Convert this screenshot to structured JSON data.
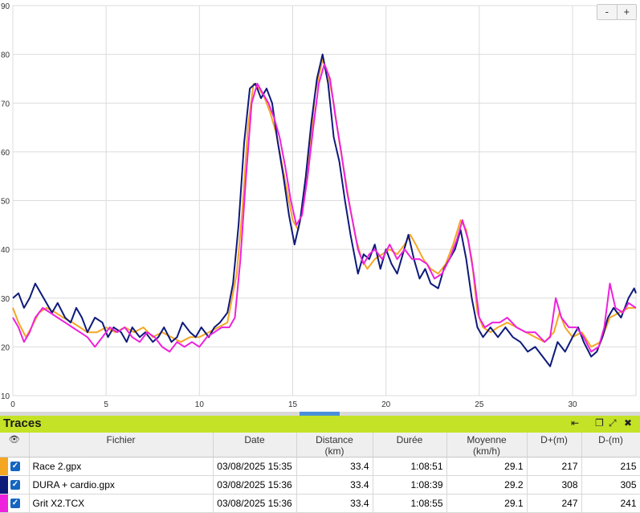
{
  "chart_data": {
    "type": "line",
    "xlim": [
      0,
      33.4
    ],
    "ylim": [
      10,
      90
    ],
    "x_ticks": [
      0,
      5,
      10,
      15,
      20,
      25,
      30
    ],
    "y_ticks": [
      10,
      20,
      30,
      40,
      50,
      60,
      70,
      80,
      90
    ],
    "grid": true,
    "series": [
      {
        "name": "Race 2.gpx",
        "color": "#f5a623",
        "points": [
          [
            0,
            28
          ],
          [
            0.3,
            25
          ],
          [
            0.7,
            22
          ],
          [
            1,
            24
          ],
          [
            1.4,
            27
          ],
          [
            1.8,
            28
          ],
          [
            2.3,
            27
          ],
          [
            2.7,
            26
          ],
          [
            3.2,
            25
          ],
          [
            3.6,
            24
          ],
          [
            4,
            23
          ],
          [
            4.5,
            23
          ],
          [
            5,
            24
          ],
          [
            5.5,
            23
          ],
          [
            6,
            24
          ],
          [
            6.5,
            23
          ],
          [
            7,
            24
          ],
          [
            7.5,
            22
          ],
          [
            8,
            23
          ],
          [
            8.5,
            22
          ],
          [
            9,
            21
          ],
          [
            9.5,
            22
          ],
          [
            10,
            22
          ],
          [
            10.5,
            23
          ],
          [
            11,
            24
          ],
          [
            11.5,
            25
          ],
          [
            12,
            35
          ],
          [
            12.3,
            48
          ],
          [
            12.6,
            65
          ],
          [
            12.9,
            74
          ],
          [
            13.2,
            73
          ],
          [
            13.5,
            71
          ],
          [
            13.8,
            68
          ],
          [
            14.1,
            64
          ],
          [
            14.4,
            58
          ],
          [
            14.7,
            52
          ],
          [
            15,
            46
          ],
          [
            15.3,
            44
          ],
          [
            15.6,
            50
          ],
          [
            15.9,
            60
          ],
          [
            16.2,
            72
          ],
          [
            16.6,
            79
          ],
          [
            16.9,
            76
          ],
          [
            17.2,
            70
          ],
          [
            17.5,
            62
          ],
          [
            17.8,
            55
          ],
          [
            18.1,
            48
          ],
          [
            18.4,
            42
          ],
          [
            18.7,
            38
          ],
          [
            19,
            36
          ],
          [
            19.4,
            38
          ],
          [
            19.8,
            39
          ],
          [
            20.2,
            40
          ],
          [
            20.6,
            39
          ],
          [
            21,
            41
          ],
          [
            21.3,
            43
          ],
          [
            21.6,
            41
          ],
          [
            22,
            38
          ],
          [
            22.4,
            36
          ],
          [
            22.8,
            35
          ],
          [
            23.2,
            37
          ],
          [
            23.6,
            41
          ],
          [
            24,
            46
          ],
          [
            24.3,
            44
          ],
          [
            24.6,
            38
          ],
          [
            24.9,
            27
          ],
          [
            25.2,
            24
          ],
          [
            25.6,
            23
          ],
          [
            26,
            24
          ],
          [
            26.5,
            25
          ],
          [
            27,
            24
          ],
          [
            27.5,
            23
          ],
          [
            28,
            22
          ],
          [
            28.5,
            21
          ],
          [
            29,
            23
          ],
          [
            29.3,
            27
          ],
          [
            29.6,
            24
          ],
          [
            30,
            22
          ],
          [
            30.5,
            23
          ],
          [
            31,
            20
          ],
          [
            31.5,
            21
          ],
          [
            32,
            26
          ],
          [
            32.5,
            27
          ],
          [
            33,
            28
          ],
          [
            33.4,
            28
          ]
        ]
      },
      {
        "name": "DURA + cardio.gpx",
        "color": "#0d1a7a",
        "points": [
          [
            0,
            30
          ],
          [
            0.3,
            31
          ],
          [
            0.6,
            28
          ],
          [
            0.9,
            30
          ],
          [
            1.2,
            33
          ],
          [
            1.5,
            31
          ],
          [
            1.8,
            29
          ],
          [
            2.1,
            27
          ],
          [
            2.4,
            29
          ],
          [
            2.8,
            26
          ],
          [
            3.1,
            25
          ],
          [
            3.4,
            28
          ],
          [
            3.7,
            26
          ],
          [
            4,
            23
          ],
          [
            4.4,
            26
          ],
          [
            4.8,
            25
          ],
          [
            5.1,
            22
          ],
          [
            5.4,
            24
          ],
          [
            5.8,
            23
          ],
          [
            6.1,
            21
          ],
          [
            6.4,
            24
          ],
          [
            6.8,
            22
          ],
          [
            7.1,
            23
          ],
          [
            7.5,
            21
          ],
          [
            7.8,
            22
          ],
          [
            8.1,
            24
          ],
          [
            8.5,
            21
          ],
          [
            8.8,
            22
          ],
          [
            9.1,
            25
          ],
          [
            9.5,
            23
          ],
          [
            9.8,
            22
          ],
          [
            10.1,
            24
          ],
          [
            10.5,
            22
          ],
          [
            10.8,
            24
          ],
          [
            11.1,
            25
          ],
          [
            11.5,
            27
          ],
          [
            11.8,
            33
          ],
          [
            12.1,
            45
          ],
          [
            12.4,
            62
          ],
          [
            12.7,
            73
          ],
          [
            13,
            74
          ],
          [
            13.3,
            71
          ],
          [
            13.6,
            73
          ],
          [
            13.9,
            70
          ],
          [
            14.2,
            62
          ],
          [
            14.5,
            55
          ],
          [
            14.8,
            47
          ],
          [
            15.1,
            41
          ],
          [
            15.4,
            46
          ],
          [
            15.7,
            55
          ],
          [
            16,
            66
          ],
          [
            16.3,
            75
          ],
          [
            16.6,
            80
          ],
          [
            16.9,
            74
          ],
          [
            17.2,
            63
          ],
          [
            17.5,
            58
          ],
          [
            17.8,
            50
          ],
          [
            18.1,
            43
          ],
          [
            18.5,
            35
          ],
          [
            18.8,
            39
          ],
          [
            19.1,
            38
          ],
          [
            19.4,
            41
          ],
          [
            19.7,
            36
          ],
          [
            20,
            40
          ],
          [
            20.3,
            37
          ],
          [
            20.6,
            35
          ],
          [
            20.9,
            39
          ],
          [
            21.2,
            43
          ],
          [
            21.5,
            38
          ],
          [
            21.8,
            34
          ],
          [
            22.1,
            36
          ],
          [
            22.4,
            33
          ],
          [
            22.8,
            32
          ],
          [
            23.1,
            36
          ],
          [
            23.4,
            38
          ],
          [
            23.7,
            40
          ],
          [
            24,
            44
          ],
          [
            24.3,
            38
          ],
          [
            24.6,
            30
          ],
          [
            24.9,
            24
          ],
          [
            25.2,
            22
          ],
          [
            25.6,
            24
          ],
          [
            26,
            22
          ],
          [
            26.4,
            24
          ],
          [
            26.8,
            22
          ],
          [
            27.2,
            21
          ],
          [
            27.6,
            19
          ],
          [
            28,
            20
          ],
          [
            28.4,
            18
          ],
          [
            28.8,
            16
          ],
          [
            29.2,
            21
          ],
          [
            29.6,
            19
          ],
          [
            30,
            22
          ],
          [
            30.3,
            24
          ],
          [
            30.6,
            21
          ],
          [
            31,
            18
          ],
          [
            31.3,
            19
          ],
          [
            31.6,
            22
          ],
          [
            31.9,
            26
          ],
          [
            32.2,
            28
          ],
          [
            32.6,
            26
          ],
          [
            33,
            30
          ],
          [
            33.3,
            32
          ],
          [
            33.4,
            31
          ]
        ]
      },
      {
        "name": "Grit X2.TCX",
        "color": "#ee21dc",
        "points": [
          [
            0,
            26
          ],
          [
            0.3,
            24
          ],
          [
            0.6,
            21
          ],
          [
            0.9,
            23
          ],
          [
            1.2,
            26
          ],
          [
            1.6,
            28
          ],
          [
            2,
            27
          ],
          [
            2.4,
            26
          ],
          [
            2.8,
            25
          ],
          [
            3.2,
            24
          ],
          [
            3.6,
            23
          ],
          [
            4,
            22
          ],
          [
            4.4,
            20
          ],
          [
            4.8,
            22
          ],
          [
            5.2,
            24
          ],
          [
            5.6,
            23
          ],
          [
            6,
            24
          ],
          [
            6.4,
            22
          ],
          [
            6.8,
            21
          ],
          [
            7.2,
            23
          ],
          [
            7.6,
            22
          ],
          [
            8,
            20
          ],
          [
            8.4,
            19
          ],
          [
            8.8,
            21
          ],
          [
            9.2,
            20
          ],
          [
            9.6,
            21
          ],
          [
            10,
            20
          ],
          [
            10.4,
            22
          ],
          [
            10.8,
            23
          ],
          [
            11.2,
            24
          ],
          [
            11.6,
            24
          ],
          [
            11.9,
            26
          ],
          [
            12.2,
            38
          ],
          [
            12.5,
            55
          ],
          [
            12.8,
            70
          ],
          [
            13.1,
            74
          ],
          [
            13.4,
            72
          ],
          [
            13.7,
            70
          ],
          [
            14,
            67
          ],
          [
            14.3,
            63
          ],
          [
            14.6,
            57
          ],
          [
            14.9,
            50
          ],
          [
            15.2,
            45
          ],
          [
            15.5,
            47
          ],
          [
            15.8,
            55
          ],
          [
            16.1,
            65
          ],
          [
            16.4,
            74
          ],
          [
            16.7,
            78
          ],
          [
            17,
            75
          ],
          [
            17.3,
            67
          ],
          [
            17.6,
            60
          ],
          [
            17.9,
            52
          ],
          [
            18.2,
            46
          ],
          [
            18.5,
            40
          ],
          [
            18.8,
            37
          ],
          [
            19.1,
            39
          ],
          [
            19.4,
            40
          ],
          [
            19.8,
            38
          ],
          [
            20.2,
            41
          ],
          [
            20.6,
            38
          ],
          [
            21,
            40
          ],
          [
            21.4,
            38
          ],
          [
            21.8,
            38
          ],
          [
            22.2,
            37
          ],
          [
            22.6,
            34
          ],
          [
            23,
            35
          ],
          [
            23.4,
            38
          ],
          [
            23.8,
            42
          ],
          [
            24.1,
            46
          ],
          [
            24.4,
            42
          ],
          [
            24.7,
            35
          ],
          [
            25,
            26
          ],
          [
            25.3,
            24
          ],
          [
            25.7,
            25
          ],
          [
            26.1,
            25
          ],
          [
            26.5,
            26
          ],
          [
            27,
            24
          ],
          [
            27.5,
            23
          ],
          [
            28,
            23
          ],
          [
            28.5,
            21
          ],
          [
            28.8,
            22
          ],
          [
            29.1,
            30
          ],
          [
            29.4,
            26
          ],
          [
            29.8,
            24
          ],
          [
            30.2,
            24
          ],
          [
            30.6,
            22
          ],
          [
            31,
            19
          ],
          [
            31.4,
            20
          ],
          [
            31.7,
            24
          ],
          [
            32,
            33
          ],
          [
            32.3,
            28
          ],
          [
            32.7,
            27
          ],
          [
            33,
            29
          ],
          [
            33.4,
            28
          ]
        ]
      }
    ]
  },
  "zoom": {
    "minus": "-",
    "plus": "+"
  },
  "panel": {
    "title": "Traces",
    "icons": {
      "collapse": "⇤",
      "restore": "❐",
      "expand": "⤢",
      "close": "✖"
    }
  },
  "table": {
    "eye_icon": "👁",
    "columns": {
      "file": "Fichier",
      "date": "Date",
      "distance": "Distance",
      "distance_unit": "(km)",
      "duration": "Durée",
      "avg": "Moyenne",
      "avg_unit": "(km/h)",
      "dplus": "D+(m)",
      "dminus": "D-(m)"
    },
    "rows": [
      {
        "color": "#f5a623",
        "checked": "✓",
        "file": "Race 2.gpx",
        "date": "03/08/2025 15:35",
        "distance": "33.4",
        "duration": "1:08:51",
        "avg": "29.1",
        "dplus": "217",
        "dminus": "215"
      },
      {
        "color": "#0d1a7a",
        "checked": "✓",
        "file": "DURA + cardio.gpx",
        "date": "03/08/2025 15:36",
        "distance": "33.4",
        "duration": "1:08:39",
        "avg": "29.2",
        "dplus": "308",
        "dminus": "305"
      },
      {
        "color": "#ee21dc",
        "checked": "✓",
        "file": "Grit X2.TCX",
        "date": "03/08/2025 15:36",
        "distance": "33.4",
        "duration": "1:08:55",
        "avg": "29.1",
        "dplus": "247",
        "dminus": "241"
      }
    ]
  }
}
